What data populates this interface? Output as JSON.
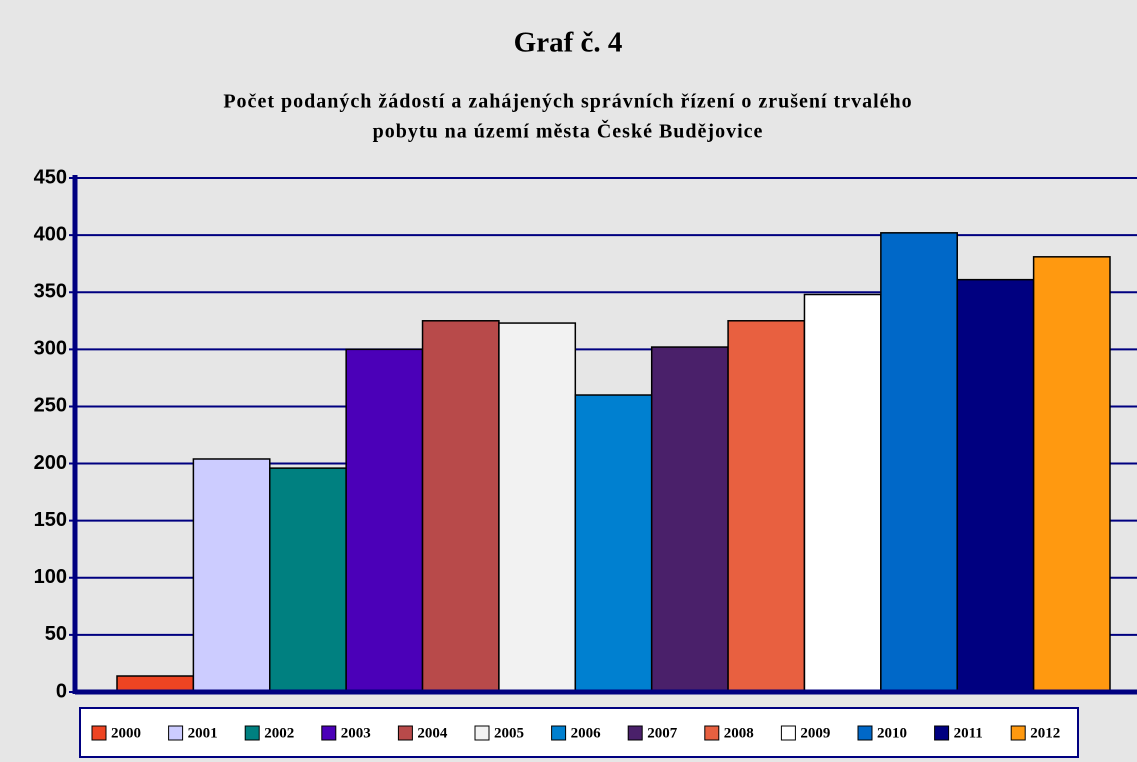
{
  "chart_data": {
    "type": "bar",
    "title": "Graf č. 4",
    "subtitle": [
      "Počet podaných žádostí a zahájených správních řízení o zrušení trvalého",
      "pobytu na území města České Budějovice"
    ],
    "series": [
      {
        "name": "2000",
        "color": "#ee4422",
        "values": [
          14
        ]
      },
      {
        "name": "2001",
        "color": "#ccccff",
        "values": [
          204
        ]
      },
      {
        "name": "2002",
        "color": "#008080",
        "values": [
          196
        ]
      },
      {
        "name": "2003",
        "color": "#4b00b8",
        "values": [
          300
        ]
      },
      {
        "name": "2004",
        "color": "#b84a4a",
        "values": [
          325
        ]
      },
      {
        "name": "2005",
        "color": "#f2f2f2",
        "values": [
          323
        ]
      },
      {
        "name": "2006",
        "color": "#0080d0",
        "values": [
          260
        ]
      },
      {
        "name": "2007",
        "color": "#4a206a",
        "values": [
          302
        ]
      },
      {
        "name": "2008",
        "color": "#e86040",
        "values": [
          325
        ]
      },
      {
        "name": "2009",
        "color": "#ffffff",
        "values": [
          348
        ]
      },
      {
        "name": "2010",
        "color": "#0068c8",
        "values": [
          402
        ]
      },
      {
        "name": "2011",
        "color": "#000080",
        "values": [
          361
        ]
      },
      {
        "name": "2012",
        "color": "#ff9910",
        "values": [
          381
        ]
      }
    ],
    "ylim": [
      0,
      450
    ],
    "yticks": [
      0,
      50,
      100,
      150,
      200,
      250,
      300,
      350,
      400,
      450
    ],
    "grid": true,
    "legend": "bottom"
  }
}
